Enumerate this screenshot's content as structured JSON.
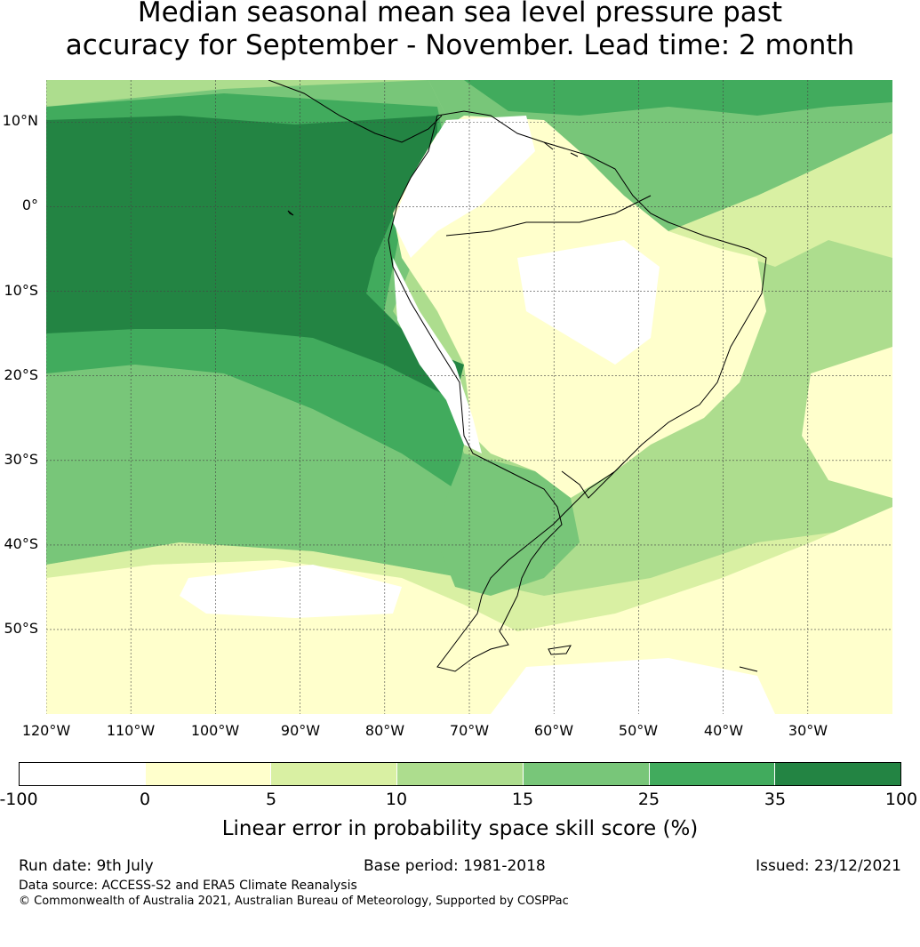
{
  "title_line1": "Median seasonal mean sea level pressure past",
  "title_line2": "accuracy for September - November. Lead time: 2 month",
  "lat_labels": [
    "10°N",
    "0°",
    "10°S",
    "20°S",
    "30°S",
    "40°S",
    "50°S"
  ],
  "lon_labels": [
    "120°W",
    "110°W",
    "100°W",
    "90°W",
    "80°W",
    "70°W",
    "60°W",
    "50°W",
    "40°W",
    "30°W"
  ],
  "map_extent": {
    "lon": [
      -120,
      -20
    ],
    "lat": [
      -60,
      15
    ]
  },
  "colorbar": {
    "ticks": [
      "-100",
      "0",
      "5",
      "10",
      "15",
      "25",
      "35",
      "100"
    ],
    "colors": [
      "#ffffff",
      "#ffffcc",
      "#d9f0a3",
      "#addd8e",
      "#78c679",
      "#41ab5d",
      "#238443"
    ],
    "label": "Linear error in probability space skill score (%)"
  },
  "footer": {
    "run_date": "Run date: 9th July",
    "base_period": "Base period: 1981-2018",
    "issued": "Issued: 23/12/2021",
    "data_source": "Data source: ACCESS-S2 and ERA5 Climate Reanalysis",
    "copyright": "© Commonwealth of Australia 2021, Australian Bureau of Meteorology, Supported by COSPPac"
  }
}
